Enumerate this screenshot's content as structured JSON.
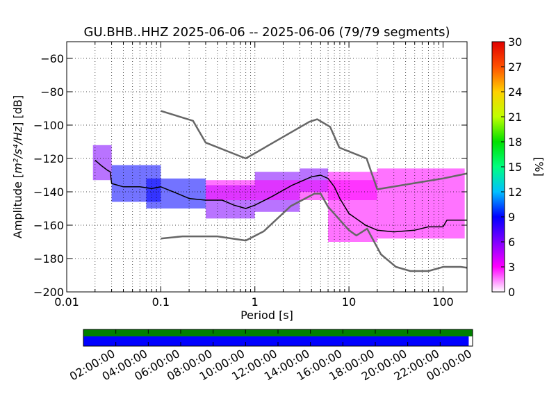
{
  "chart_data": {
    "type": "heatmap",
    "title": "GU.BHB..HHZ   2025-06-06 -- 2025-06-06  (79/79 segments)",
    "xlabel": "Period [s]",
    "ylabel_prefix": "Amplitude [",
    "ylabel_math": "m²/s⁴/Hz",
    "ylabel_suffix": "] [dB]",
    "x_scale": "log",
    "xlim": [
      0.01,
      180
    ],
    "ylim": [
      -200,
      -50
    ],
    "x_ticks": [
      0.01,
      0.1,
      1,
      10,
      100
    ],
    "x_tick_labels": [
      "0.01",
      "0.1",
      "1",
      "10",
      "100"
    ],
    "y_ticks": [
      -200,
      -180,
      -160,
      -140,
      -120,
      -100,
      -80,
      -60
    ],
    "y_tick_labels": [
      "−200",
      "−180",
      "−160",
      "−140",
      "−120",
      "−100",
      "−80",
      "−60"
    ],
    "grid": true,
    "colorbar": {
      "label": "[%]",
      "range": [
        0,
        30
      ],
      "ticks": [
        0,
        3,
        6,
        9,
        12,
        15,
        18,
        21,
        24,
        27,
        30
      ],
      "tick_labels": [
        "0",
        "3",
        "6",
        "9",
        "12",
        "15",
        "18",
        "21",
        "24",
        "27",
        "30"
      ],
      "colors": [
        "#ffffff",
        "#ff00ff",
        "#8000ff",
        "#0000ff",
        "#00c0ff",
        "#00ff80",
        "#00e000",
        "#c0ff00",
        "#ffd000",
        "#ff5000",
        "#e00000"
      ]
    },
    "series": [
      {
        "kind": "noise_model_high",
        "color": "#666666",
        "x": [
          0.1,
          0.22,
          0.3,
          0.8,
          3.8,
          4.6,
          6.3,
          7.9,
          15.4,
          20,
          100,
          180
        ],
        "y": [
          -91.5,
          -97.4,
          -110.5,
          -120,
          -98,
          -96.5,
          -101,
          -113.5,
          -120,
          -138.5,
          -132,
          -129
        ]
      },
      {
        "kind": "noise_model_low",
        "color": "#666666",
        "x": [
          0.1,
          0.17,
          0.4,
          0.8,
          1.24,
          2.4,
          4.3,
          5,
          6,
          10,
          12,
          15.6,
          21.9,
          31.6,
          45,
          70,
          101,
          154,
          180
        ],
        "y": [
          -168,
          -166.7,
          -166.7,
          -169.2,
          -163.7,
          -148.6,
          -141.1,
          -141.1,
          -149,
          -163,
          -166.2,
          -162.1,
          -177.5,
          -185,
          -187.5,
          -187.5,
          -185,
          -185,
          -185.5
        ]
      },
      {
        "kind": "mode",
        "color": "#000000",
        "x": [
          0.02,
          0.023,
          0.027,
          0.029,
          0.03,
          0.04,
          0.06,
          0.08,
          0.1,
          0.15,
          0.2,
          0.3,
          0.45,
          0.6,
          0.8,
          1,
          1.5,
          2.5,
          4,
          5,
          6,
          7,
          8,
          10,
          15,
          20,
          30,
          50,
          70,
          100,
          110,
          180
        ],
        "y": [
          -121,
          -124,
          -127,
          -128,
          -135,
          -137,
          -137,
          -138,
          -137,
          -141,
          -144,
          -145,
          -145,
          -148,
          -150,
          -148,
          -143,
          -136,
          -131,
          -130,
          -132,
          -137,
          -144,
          -153,
          -160,
          -163,
          -164,
          -163,
          -161,
          -161,
          -157,
          -157
        ]
      }
    ],
    "density_bands": [
      {
        "x": [
          0.019,
          0.03
        ],
        "y": [
          -133,
          -112
        ],
        "level": 2
      },
      {
        "x": [
          0.03,
          0.1
        ],
        "y": [
          -146,
          -124
        ],
        "level": 3
      },
      {
        "x": [
          0.07,
          0.3
        ],
        "y": [
          -150,
          -132
        ],
        "level": 3
      },
      {
        "x": [
          0.3,
          1
        ],
        "y": [
          -156,
          -136
        ],
        "level": 2
      },
      {
        "x": [
          1,
          3
        ],
        "y": [
          -152,
          -128
        ],
        "level": 2
      },
      {
        "x": [
          3,
          6
        ],
        "y": [
          -140,
          -126
        ],
        "level": 2
      },
      {
        "x": [
          6,
          20
        ],
        "y": [
          -170,
          -128
        ],
        "level": 1
      },
      {
        "x": [
          20,
          170
        ],
        "y": [
          -168,
          -126
        ],
        "level": 1
      },
      {
        "x": [
          0.3,
          20
        ],
        "y": [
          -145,
          -133
        ],
        "level": 1
      }
    ],
    "timeline": {
      "tick_labels": [
        "02:00:00",
        "04:00:00",
        "06:00:00",
        "08:00:00",
        "10:00:00",
        "12:00:00",
        "14:00:00",
        "16:00:00",
        "18:00:00",
        "20:00:00",
        "22:00:00",
        "00:00:00"
      ],
      "top_bar_color": "#007f00",
      "bottom_bar_color": "#0000ff",
      "bottom_bar_end_fraction": 0.99
    }
  }
}
